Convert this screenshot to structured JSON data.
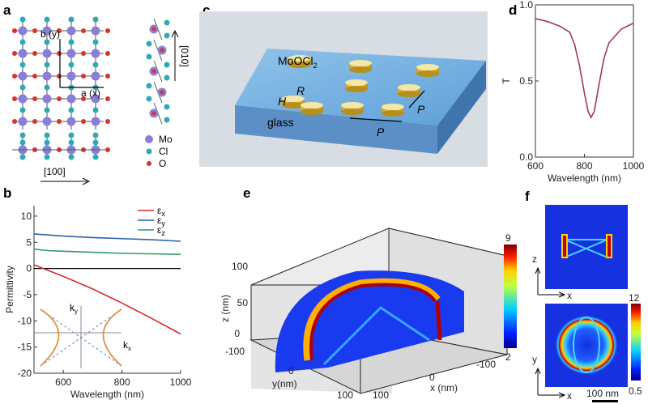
{
  "panels": {
    "a": "a",
    "b": "b",
    "c": "c",
    "d": "d",
    "e": "e",
    "f": "f"
  },
  "panel_a": {
    "axis_b": "b (y)",
    "axis_a": "a (x)",
    "dir_010": "[010]",
    "dir_100": "[100]",
    "legend": [
      {
        "label": "Mo",
        "color": "#8a7fd6"
      },
      {
        "label": "Cl",
        "color": "#2fa9b8"
      },
      {
        "label": "O",
        "color": "#d93030"
      }
    ]
  },
  "panel_c": {
    "material": "MoOCl",
    "material_sub": "2",
    "H": "H",
    "R": "R",
    "P1": "P",
    "P2": "P",
    "substrate": "glass"
  },
  "panel_e": {
    "zlabel": "z (nm)",
    "ylabel": "y(nm)",
    "xlabel": "x (nm)",
    "zticks": [
      "0",
      "50",
      "100"
    ],
    "yticks": [
      "-100",
      "0",
      "100"
    ],
    "xticks": [
      "100",
      "0",
      "-100"
    ],
    "cbar_max": "9",
    "cbar_min": "2"
  },
  "panel_f": {
    "top_axes": {
      "v": "z",
      "h": "x"
    },
    "bottom_axes": {
      "v": "y",
      "h": "x"
    },
    "scalebar": "100 nm",
    "cbar_max": "12",
    "cbar_min": "0.5"
  },
  "chart_data": [
    {
      "id": "b",
      "type": "line",
      "xlabel": "Wavelength (nm)",
      "ylabel": "Permittivity",
      "xlim": [
        500,
        1000
      ],
      "ylim": [
        -20,
        12
      ],
      "xticks": [
        "600",
        "800",
        "1000"
      ],
      "yticks": [
        "10",
        "5",
        "0",
        "-5",
        "-10",
        "-15",
        "-20"
      ],
      "legend_position": "top-right",
      "series": [
        {
          "name": "εx",
          "sub": "x",
          "color": "#d22b2b",
          "x": [
            500,
            600,
            700,
            800,
            900,
            1000
          ],
          "y": [
            0.7,
            -1.5,
            -3.9,
            -6.6,
            -9.5,
            -12.5
          ]
        },
        {
          "name": "εy",
          "sub": "y",
          "color": "#2f5fa8",
          "x": [
            500,
            600,
            700,
            800,
            900,
            1000
          ],
          "y": [
            6.6,
            6.2,
            5.9,
            5.7,
            5.5,
            5.2
          ]
        },
        {
          "name": "εz",
          "sub": "z",
          "color": "#2e9a6a",
          "x": [
            500,
            550,
            600,
            700,
            800,
            900,
            1000
          ],
          "y": [
            3.7,
            3.4,
            3.3,
            3.1,
            2.9,
            2.8,
            2.7
          ]
        }
      ],
      "inset": {
        "type": "hyperbola",
        "xlabel": "kx",
        "ylabel": "ky",
        "xsub": "x",
        "ysub": "y"
      }
    },
    {
      "id": "d",
      "type": "line",
      "xlabel": "Wavelength (nm)",
      "ylabel": "T",
      "xlim": [
        600,
        1000
      ],
      "ylim": [
        0,
        1
      ],
      "xticks": [
        "600",
        "800",
        "1000"
      ],
      "yticks": [
        "1.0",
        "0.5",
        "0.0"
      ],
      "series": [
        {
          "name": "T",
          "color": "#a2336a",
          "x": [
            600,
            650,
            700,
            740,
            760,
            780,
            800,
            815,
            827,
            840,
            860,
            880,
            900,
            950,
            1000
          ],
          "y": [
            0.91,
            0.89,
            0.86,
            0.82,
            0.74,
            0.6,
            0.42,
            0.3,
            0.26,
            0.3,
            0.48,
            0.65,
            0.75,
            0.84,
            0.88
          ]
        }
      ]
    }
  ]
}
